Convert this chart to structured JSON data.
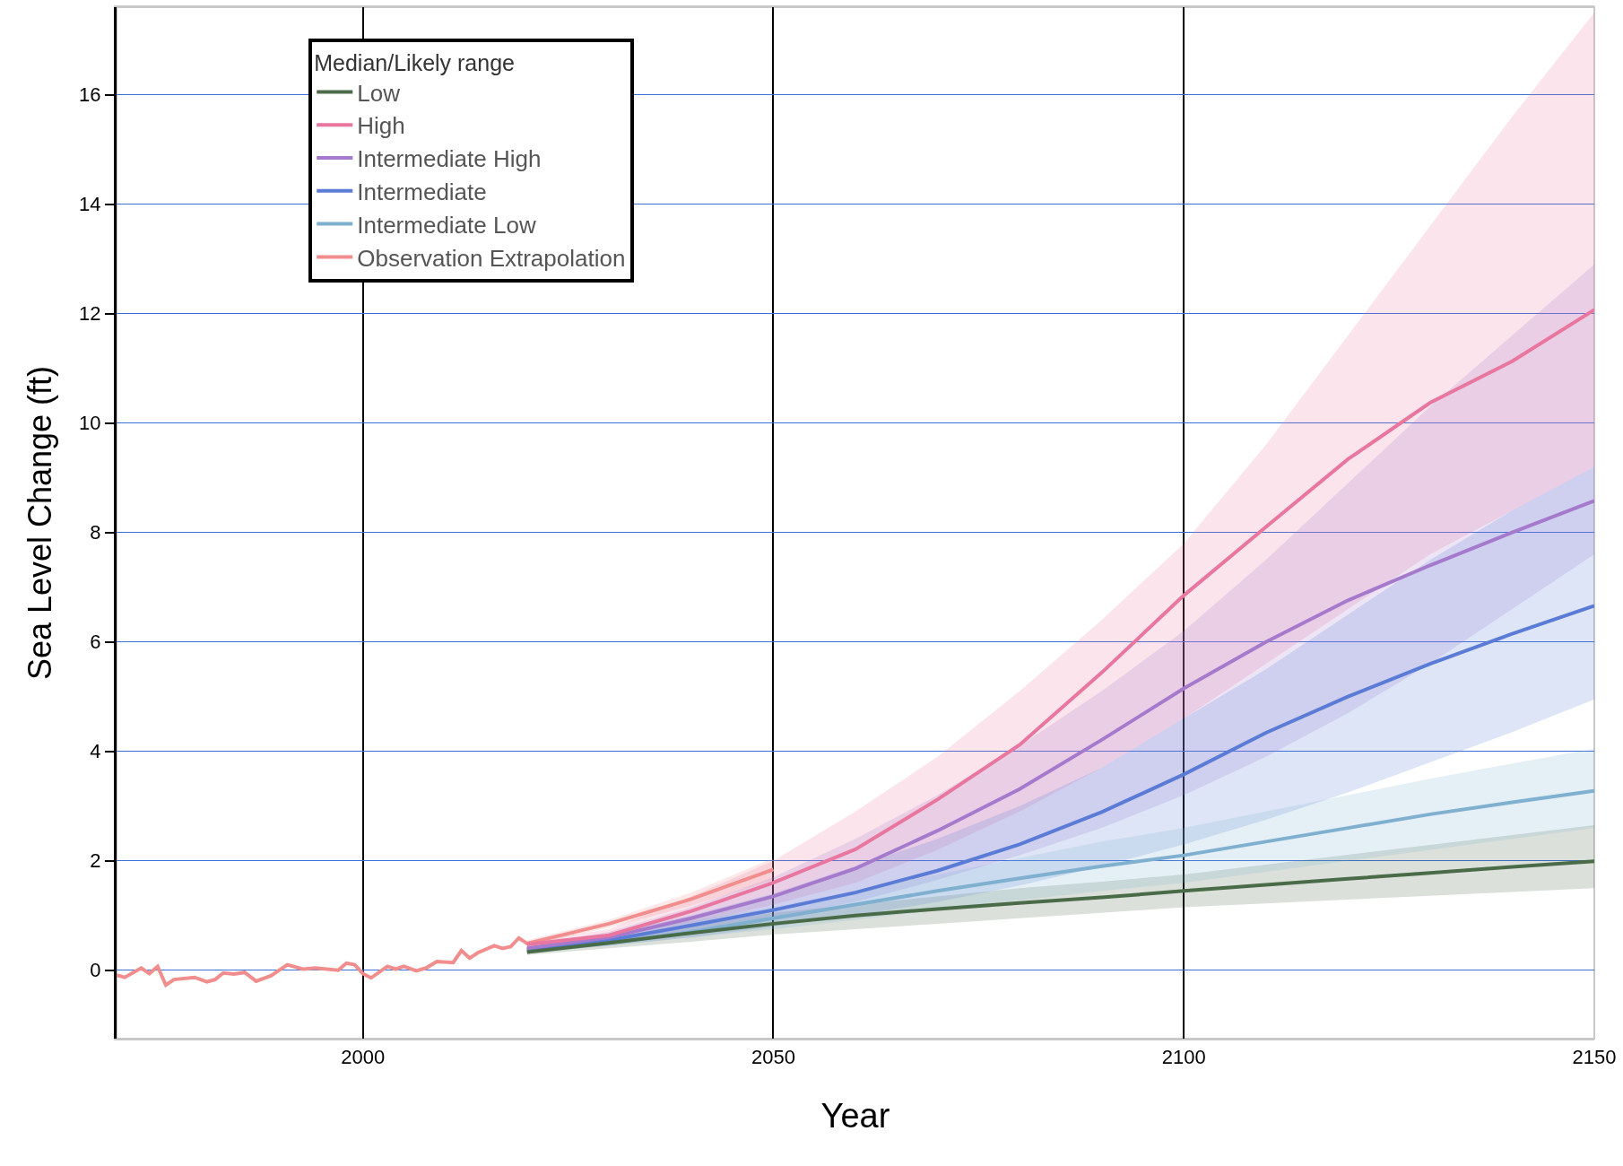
{
  "chart_data": {
    "type": "line",
    "xlabel": "Year",
    "ylabel": "Sea Level Change (ft)",
    "legend_title": "Median/Likely range",
    "xlim": [
      1970,
      2150
    ],
    "ylim": [
      -1.25,
      17.6
    ],
    "xticks": [
      2000,
      2050,
      2100,
      2150
    ],
    "yticks": [
      0,
      2,
      4,
      6,
      8,
      10,
      12,
      14,
      16
    ],
    "grid": true,
    "legend": "top left",
    "series": [
      {
        "name": "Low",
        "color": "#4a6b48",
        "x": [
          2020,
          2030,
          2040,
          2050,
          2060,
          2070,
          2080,
          2090,
          2100,
          2110,
          2120,
          2130,
          2140,
          2150
        ],
        "values": [
          0.33,
          0.5,
          0.68,
          0.85,
          1.0,
          1.12,
          1.23,
          1.33,
          1.45,
          1.56,
          1.67,
          1.78,
          1.89,
          1.99
        ],
        "lower": [
          0.28,
          0.4,
          0.52,
          0.65,
          0.75,
          0.85,
          0.95,
          1.05,
          1.15,
          1.22,
          1.29,
          1.36,
          1.43,
          1.5
        ],
        "upper": [
          0.38,
          0.6,
          0.82,
          1.05,
          1.2,
          1.35,
          1.5,
          1.62,
          1.75,
          1.93,
          2.11,
          2.29,
          2.47,
          2.65
        ]
      },
      {
        "name": "High",
        "color": "#e9769f",
        "x": [
          2020,
          2030,
          2040,
          2050,
          2060,
          2070,
          2080,
          2090,
          2100,
          2110,
          2120,
          2130,
          2140,
          2150
        ],
        "values": [
          0.47,
          0.64,
          1.08,
          1.6,
          2.21,
          3.12,
          4.12,
          5.44,
          6.85,
          8.1,
          9.34,
          10.37,
          11.13,
          12.07
        ],
        "lower": [
          0.42,
          0.55,
          0.85,
          1.2,
          1.6,
          2.2,
          2.9,
          3.7,
          4.6,
          5.6,
          6.6,
          7.6,
          8.4,
          9.2
        ],
        "upper": [
          0.52,
          0.75,
          1.35,
          2.0,
          2.9,
          3.9,
          5.1,
          6.4,
          7.8,
          9.6,
          11.6,
          13.6,
          15.6,
          17.5
        ]
      },
      {
        "name": "Intermediate High",
        "color": "#a57acd",
        "x": [
          2020,
          2030,
          2040,
          2050,
          2060,
          2070,
          2080,
          2090,
          2100,
          2110,
          2120,
          2130,
          2140,
          2150
        ],
        "values": [
          0.4,
          0.6,
          0.95,
          1.35,
          1.86,
          2.55,
          3.31,
          4.21,
          5.15,
          6.0,
          6.76,
          7.4,
          8.0,
          8.58
        ],
        "lower": [
          0.35,
          0.48,
          0.7,
          0.95,
          1.25,
          1.65,
          2.1,
          2.6,
          3.2,
          3.9,
          4.7,
          5.6,
          6.6,
          7.6
        ],
        "upper": [
          0.45,
          0.7,
          1.15,
          1.7,
          2.4,
          3.2,
          4.1,
          5.1,
          6.2,
          7.5,
          8.9,
          10.3,
          11.6,
          12.9
        ]
      },
      {
        "name": "Intermediate",
        "color": "#5a7bd6",
        "x": [
          2020,
          2030,
          2040,
          2050,
          2060,
          2070,
          2080,
          2090,
          2100,
          2110,
          2120,
          2130,
          2140,
          2150
        ],
        "values": [
          0.38,
          0.55,
          0.82,
          1.1,
          1.42,
          1.82,
          2.3,
          2.89,
          3.58,
          4.34,
          5.0,
          5.6,
          6.15,
          6.66
        ],
        "lower": [
          0.32,
          0.45,
          0.6,
          0.8,
          1.0,
          1.25,
          1.55,
          1.9,
          2.3,
          2.75,
          3.25,
          3.8,
          4.35,
          4.95
        ],
        "upper": [
          0.42,
          0.65,
          1.0,
          1.4,
          1.9,
          2.4,
          3.0,
          3.7,
          4.6,
          5.5,
          6.5,
          7.5,
          8.4,
          9.2
        ]
      },
      {
        "name": "Intermediate Low",
        "color": "#7fb0d0",
        "x": [
          2020,
          2030,
          2040,
          2050,
          2060,
          2070,
          2080,
          2090,
          2100,
          2110,
          2120,
          2130,
          2140,
          2150
        ],
        "values": [
          0.36,
          0.5,
          0.7,
          0.95,
          1.2,
          1.45,
          1.68,
          1.9,
          2.1,
          2.35,
          2.6,
          2.85,
          3.07,
          3.28
        ],
        "lower": [
          0.3,
          0.45,
          0.6,
          0.75,
          0.92,
          1.1,
          1.28,
          1.45,
          1.6,
          1.8,
          2.0,
          2.2,
          2.4,
          2.6
        ],
        "upper": [
          0.4,
          0.65,
          0.9,
          1.15,
          1.45,
          1.75,
          2.05,
          2.35,
          2.6,
          2.9,
          3.2,
          3.5,
          3.78,
          4.05
        ]
      },
      {
        "name": "Observation Extrapolation",
        "color": "#f28d8d",
        "x": [
          1970,
          1971,
          1973,
          1974,
          1975,
          1976,
          1977,
          1979.5,
          1981,
          1982,
          1983,
          1984.3,
          1985.6,
          1987,
          1988.8,
          1990.8,
          1992.7,
          1994.2,
          1997,
          1998,
          1999,
          2000,
          2001,
          2003,
          2004,
          2005,
          2006.5,
          2007.7,
          2009,
          2011,
          2012,
          2013,
          2014,
          2016,
          2017,
          2018,
          2019,
          2020,
          2030,
          2040,
          2050
        ],
        "values": [
          -0.09,
          -0.13,
          0.04,
          -0.06,
          0.07,
          -0.27,
          -0.17,
          -0.13,
          -0.21,
          -0.17,
          -0.05,
          -0.07,
          -0.04,
          -0.2,
          -0.1,
          0.1,
          0.02,
          0.04,
          0,
          0.13,
          0.1,
          -0.06,
          -0.14,
          0.07,
          0.02,
          0.07,
          -0.01,
          0.04,
          0.16,
          0.14,
          0.36,
          0.22,
          0.32,
          0.45,
          0.4,
          0.43,
          0.59,
          0.49,
          0.85,
          1.3,
          1.84
        ],
        "lower": [
          null,
          null,
          null,
          null,
          null,
          null,
          null,
          null,
          null,
          null,
          null,
          null,
          null,
          null,
          null,
          null,
          null,
          null,
          null,
          null,
          null,
          null,
          null,
          null,
          null,
          null,
          null,
          null,
          null,
          null,
          null,
          null,
          null,
          null,
          null,
          null,
          null,
          0.45,
          0.78,
          1.18,
          1.65
        ],
        "upper": [
          null,
          null,
          null,
          null,
          null,
          null,
          null,
          null,
          null,
          null,
          null,
          null,
          null,
          null,
          null,
          null,
          null,
          null,
          null,
          null,
          null,
          null,
          null,
          null,
          null,
          null,
          null,
          null,
          null,
          null,
          null,
          null,
          null,
          null,
          null,
          null,
          null,
          0.55,
          0.92,
          1.42,
          2.05
        ]
      }
    ]
  }
}
